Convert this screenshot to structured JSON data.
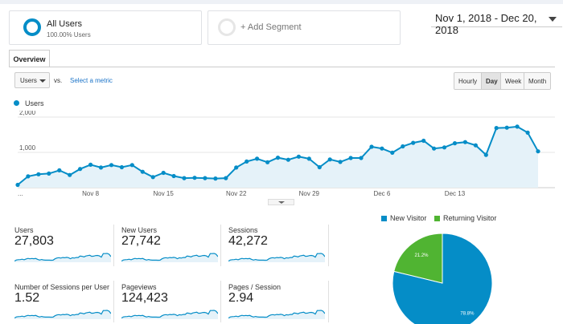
{
  "segments": {
    "all_users": {
      "title": "All Users",
      "subtitle": "100.00% Users"
    },
    "add_segment": {
      "label": "+ Add Segment"
    }
  },
  "date_range": "Nov 1, 2018 - Dec 20, 2018",
  "tabs": [
    {
      "label": "Overview",
      "active": true
    }
  ],
  "metric_selector": {
    "value": "Users",
    "vs_label": "vs.",
    "select_metric_label": "Select a metric"
  },
  "granularity": {
    "options": [
      "Hourly",
      "Day",
      "Week",
      "Month"
    ],
    "selected": "Day"
  },
  "colors": {
    "accent": "#058dc7",
    "returning": "#50b432",
    "area_fill": "#e5f2f9"
  },
  "chart_data": [
    {
      "type": "line",
      "series": [
        {
          "name": "Users",
          "values": [
            80,
            320,
            380,
            400,
            490,
            360,
            530,
            650,
            570,
            640,
            580,
            640,
            450,
            300,
            420,
            330,
            270,
            280,
            270,
            260,
            270,
            570,
            740,
            820,
            720,
            850,
            790,
            880,
            820,
            580,
            800,
            730,
            840,
            840,
            1160,
            1110,
            990,
            1170,
            1270,
            1330,
            1110,
            1140,
            1260,
            1290,
            1200,
            930,
            1690,
            1700,
            1730,
            1560,
            1030
          ]
        }
      ],
      "x_tick_labels": [
        "...",
        "Nov 8",
        "Nov 15",
        "Nov 22",
        "Nov 29",
        "Dec 6",
        "Dec 13"
      ],
      "y_tick_labels": [
        "1,000",
        "2,000"
      ],
      "ylim": [
        0,
        2000
      ],
      "grid": true
    },
    {
      "type": "pie",
      "slices": [
        {
          "label": "New Visitor",
          "value": 78.8,
          "color": "#058dc7",
          "display": "78.8%"
        },
        {
          "label": "Returning Visitor",
          "value": 21.2,
          "color": "#50b432",
          "display": "21.2%"
        }
      ],
      "legend_position": "top"
    }
  ],
  "stats": [
    {
      "label": "Users",
      "value": "27,803"
    },
    {
      "label": "New Users",
      "value": "27,742"
    },
    {
      "label": "Sessions",
      "value": "42,272"
    },
    {
      "label": "Number of Sessions per User",
      "value": "1.52"
    },
    {
      "label": "Pageviews",
      "value": "124,423"
    },
    {
      "label": "Pages / Session",
      "value": "2.94"
    }
  ]
}
